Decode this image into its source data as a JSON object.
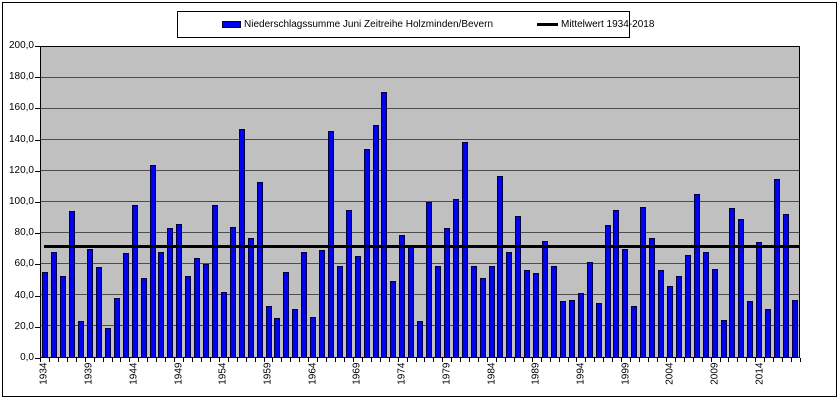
{
  "legend": {
    "series1_label": "Niederschlagssumme Juni Zeitreihe Holzminden/Bevern",
    "series2_label": "Mittelwert 1934-2018"
  },
  "colors": {
    "bar_fill": "#0202EC",
    "bar_border": "#000040",
    "mean_line": "#000000",
    "plot_background": "#C0C0C0",
    "gridline": "#4d4d4d"
  },
  "chart_data": {
    "type": "bar",
    "title": "",
    "x_start": 1934,
    "x_end": 2018,
    "series": [
      {
        "name": "Niederschlagssumme Juni Zeitreihe Holzminden/Bevern",
        "type": "bar",
        "values": [
          55,
          68,
          52,
          94,
          23,
          70,
          58,
          19,
          38,
          67,
          98,
          51,
          124,
          68,
          83,
          86,
          52,
          64,
          60,
          98,
          42,
          84,
          147,
          77,
          113,
          33,
          25,
          55,
          31,
          68,
          26,
          69,
          146,
          59,
          95,
          65,
          134,
          150,
          171,
          49,
          79,
          71,
          23,
          100,
          59,
          83,
          102,
          139,
          59,
          51,
          59,
          117,
          68,
          91,
          56,
          54,
          75,
          59,
          36,
          37,
          41,
          61,
          35,
          85,
          95,
          70,
          33,
          97,
          77,
          56,
          46,
          52,
          66,
          105,
          68,
          57,
          24,
          96,
          89,
          36,
          74,
          31,
          115,
          92,
          37
        ]
      },
      {
        "name": "Mittelwert 1934-2018",
        "type": "line",
        "value": 71
      }
    ],
    "ylim": [
      0,
      200
    ],
    "ytick_step": 20,
    "ytick_labels_top_to_bottom": [
      "200,0",
      "180,0",
      "160,0",
      "140,0",
      "120,0",
      "100,0",
      "80,0",
      "60,0",
      "40,0",
      "20,0",
      "0,0"
    ],
    "xtick_labels_shown": [
      "1934",
      "1939",
      "1944",
      "1949",
      "1954",
      "1959",
      "1964",
      "1969",
      "1974",
      "1979",
      "1984",
      "1989",
      "1994",
      "1999",
      "2004",
      "2009",
      "2014"
    ],
    "xtick_label_interval": 5,
    "grid": "horizontal",
    "legend_position": "top"
  }
}
